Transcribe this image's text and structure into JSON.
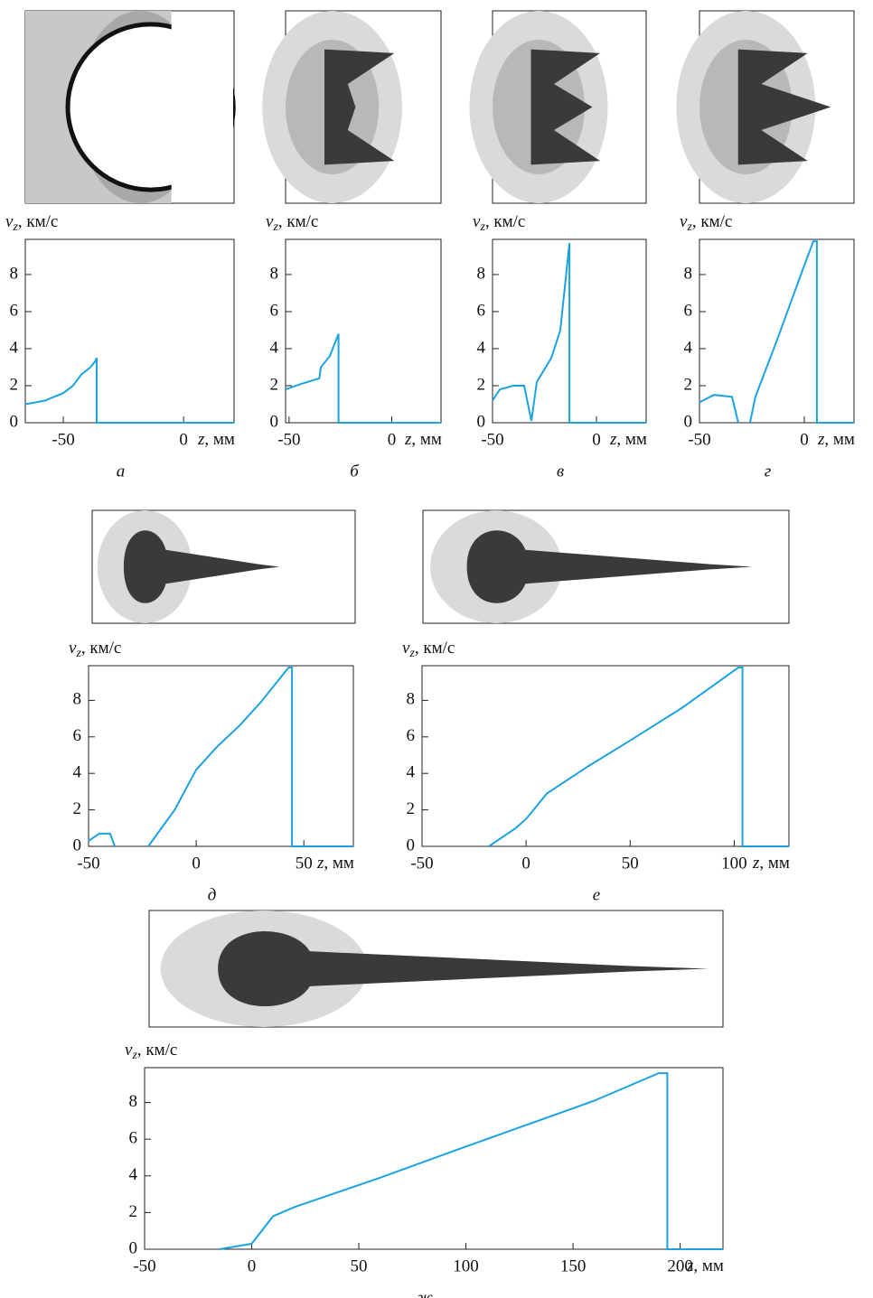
{
  "chart_data": [
    {
      "type": "line",
      "label": "а",
      "ylabel": [
        "v",
        "z",
        ", км/с"
      ],
      "xlabel": [
        "z",
        ", мм"
      ],
      "color": "#1aa3e0",
      "x": [
        -65.8,
        -61.3,
        -57.5,
        -53.8,
        -50,
        -46,
        -42.5,
        -38.7,
        -36.8,
        -36.1,
        -36.1,
        21
      ],
      "values": [
        1.0,
        1.1,
        1.2,
        1.4,
        1.6,
        2.0,
        2.6,
        3.0,
        3.3,
        3.5,
        0,
        0
      ],
      "xlim": [
        -65.8,
        21
      ],
      "ylim": [
        0,
        9.9
      ],
      "xticks": [
        -50,
        0
      ],
      "yticks": [
        0,
        2,
        4,
        6,
        8
      ]
    },
    {
      "type": "line",
      "label": "б",
      "ylabel": [
        "v",
        "z",
        ", км/с"
      ],
      "xlabel": [
        "z",
        ", мм"
      ],
      "color": "#1aa3e0",
      "x": [
        -51.7,
        -44,
        -35.3,
        -34.5,
        -30.2,
        -25.9,
        -25.9,
        24
      ],
      "values": [
        1.8,
        2.1,
        2.4,
        3.0,
        3.6,
        4.8,
        0,
        0
      ],
      "xlim": [
        -51.7,
        24
      ],
      "ylim": [
        0,
        9.9
      ],
      "xticks": [
        -50,
        0
      ],
      "yticks": [
        0,
        2,
        4,
        6,
        8
      ]
    },
    {
      "type": "line",
      "label": "в",
      "ylabel": [
        "v",
        "z",
        ", км/с"
      ],
      "xlabel": [
        "z",
        ", мм"
      ],
      "color": "#1aa3e0",
      "x": [
        -50,
        -46.5,
        -40,
        -34.8,
        -31.3,
        -28.7,
        -21.7,
        -17.4,
        -13,
        -13,
        23.9
      ],
      "values": [
        1.2,
        1.8,
        2.0,
        2.0,
        0.1,
        2.2,
        3.5,
        5.0,
        9.7,
        0,
        0
      ],
      "xlim": [
        -50,
        23.9
      ],
      "ylim": [
        0,
        9.9
      ],
      "xticks": [
        -50,
        0
      ],
      "yticks": [
        0,
        2,
        4,
        6,
        8
      ]
    },
    {
      "type": "line",
      "label": "г",
      "ylabel": [
        "v",
        "z",
        ", км/с"
      ],
      "xlabel": [
        "z",
        ", мм"
      ],
      "color": "#1aa3e0",
      "x": [
        -50,
        -43.1,
        -34.5,
        -31.5,
        null,
        -25.9,
        -23.3,
        -12.9,
        0,
        4.3,
        6,
        6,
        23.7
      ],
      "values": [
        1.1,
        1.5,
        1.4,
        0,
        null,
        0,
        1.4,
        4.5,
        8.5,
        9.8,
        9.8,
        0,
        0
      ],
      "xlim": [
        -50,
        23.7
      ],
      "ylim": [
        0,
        9.9
      ],
      "xticks": [
        -50,
        0
      ],
      "yticks": [
        0,
        2,
        4,
        6,
        8
      ]
    },
    {
      "type": "line",
      "label": "д",
      "ylabel": [
        "v",
        "z",
        ", км/с"
      ],
      "xlabel": [
        "z",
        ", мм"
      ],
      "color": "#1aa3e0",
      "x": [
        -50,
        -45,
        -40,
        -37.8,
        null,
        -22.3,
        -10,
        0,
        10,
        20,
        30,
        42.9,
        44.5,
        44.5,
        73
      ],
      "values": [
        0.3,
        0.7,
        0.7,
        0,
        null,
        0,
        2.0,
        4.2,
        5.5,
        6.6,
        7.9,
        9.8,
        9.8,
        0,
        0
      ],
      "xlim": [
        -50,
        73
      ],
      "ylim": [
        0,
        9.9
      ],
      "xticks": [
        -50,
        0,
        50
      ],
      "yticks": [
        0,
        2,
        4,
        6,
        8
      ]
    },
    {
      "type": "line",
      "label": "е",
      "ylabel": [
        "v",
        "z",
        ", км/с"
      ],
      "xlabel": [
        "z",
        ", мм"
      ],
      "color": "#1aa3e0",
      "x": [
        -17.9,
        -5,
        0,
        10,
        30,
        50,
        75,
        102,
        104,
        104,
        126.3
      ],
      "values": [
        0,
        1.0,
        1.5,
        2.9,
        4.4,
        5.8,
        7.6,
        9.8,
        9.8,
        0,
        0
      ],
      "xlim": [
        -50,
        126.3
      ],
      "ylim": [
        0,
        9.9
      ],
      "xticks": [
        -50,
        0,
        50,
        100
      ],
      "yticks": [
        0,
        2,
        4,
        6,
        8
      ]
    },
    {
      "type": "line",
      "label": "ж",
      "ylabel": [
        "v",
        "z",
        ", км/с"
      ],
      "xlabel": [
        "z",
        ", мм"
      ],
      "color": "#1aa3e0",
      "x": [
        -15,
        0,
        10,
        20,
        60,
        100,
        160,
        190,
        194,
        194,
        220
      ],
      "values": [
        0,
        0.3,
        1.8,
        2.3,
        3.9,
        5.6,
        8.1,
        9.6,
        9.6,
        0,
        0
      ],
      "xlim": [
        -50,
        220
      ],
      "ylim": [
        0,
        9.9
      ],
      "xticks": [
        -50,
        0,
        50,
        100,
        150,
        200
      ],
      "yticks": [
        0,
        2,
        4,
        6,
        8
      ]
    }
  ]
}
